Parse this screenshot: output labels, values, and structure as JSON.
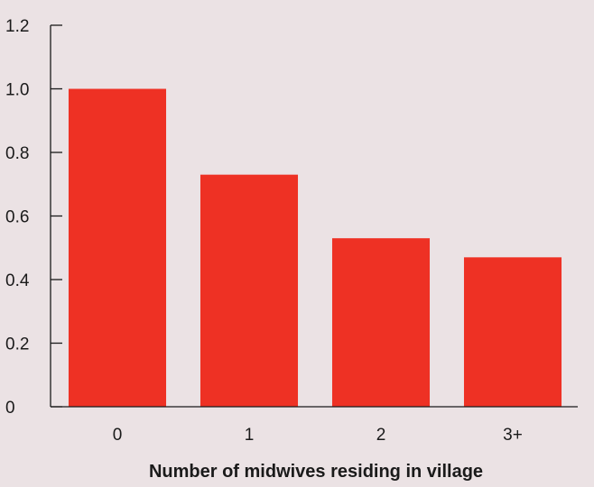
{
  "chart_data": {
    "type": "bar",
    "title": "",
    "xlabel": "Number of midwives residing in village",
    "ylabel": "",
    "categories": [
      "0",
      "1",
      "2",
      "3+"
    ],
    "values": [
      1.0,
      0.73,
      0.53,
      0.47
    ],
    "ylim": [
      0,
      1.2
    ],
    "yticks": [
      0,
      0.2,
      0.4,
      0.6,
      0.8,
      1.0,
      1.2
    ],
    "ytick_labels": [
      "0",
      "0.2",
      "0.4",
      "0.6",
      "0.8",
      "1.0",
      "1.2"
    ],
    "grid": false,
    "legend": "none",
    "colors": {
      "bar": "#ee3124",
      "axis": "#1a1a1a",
      "background": "#ebe2e4"
    }
  }
}
